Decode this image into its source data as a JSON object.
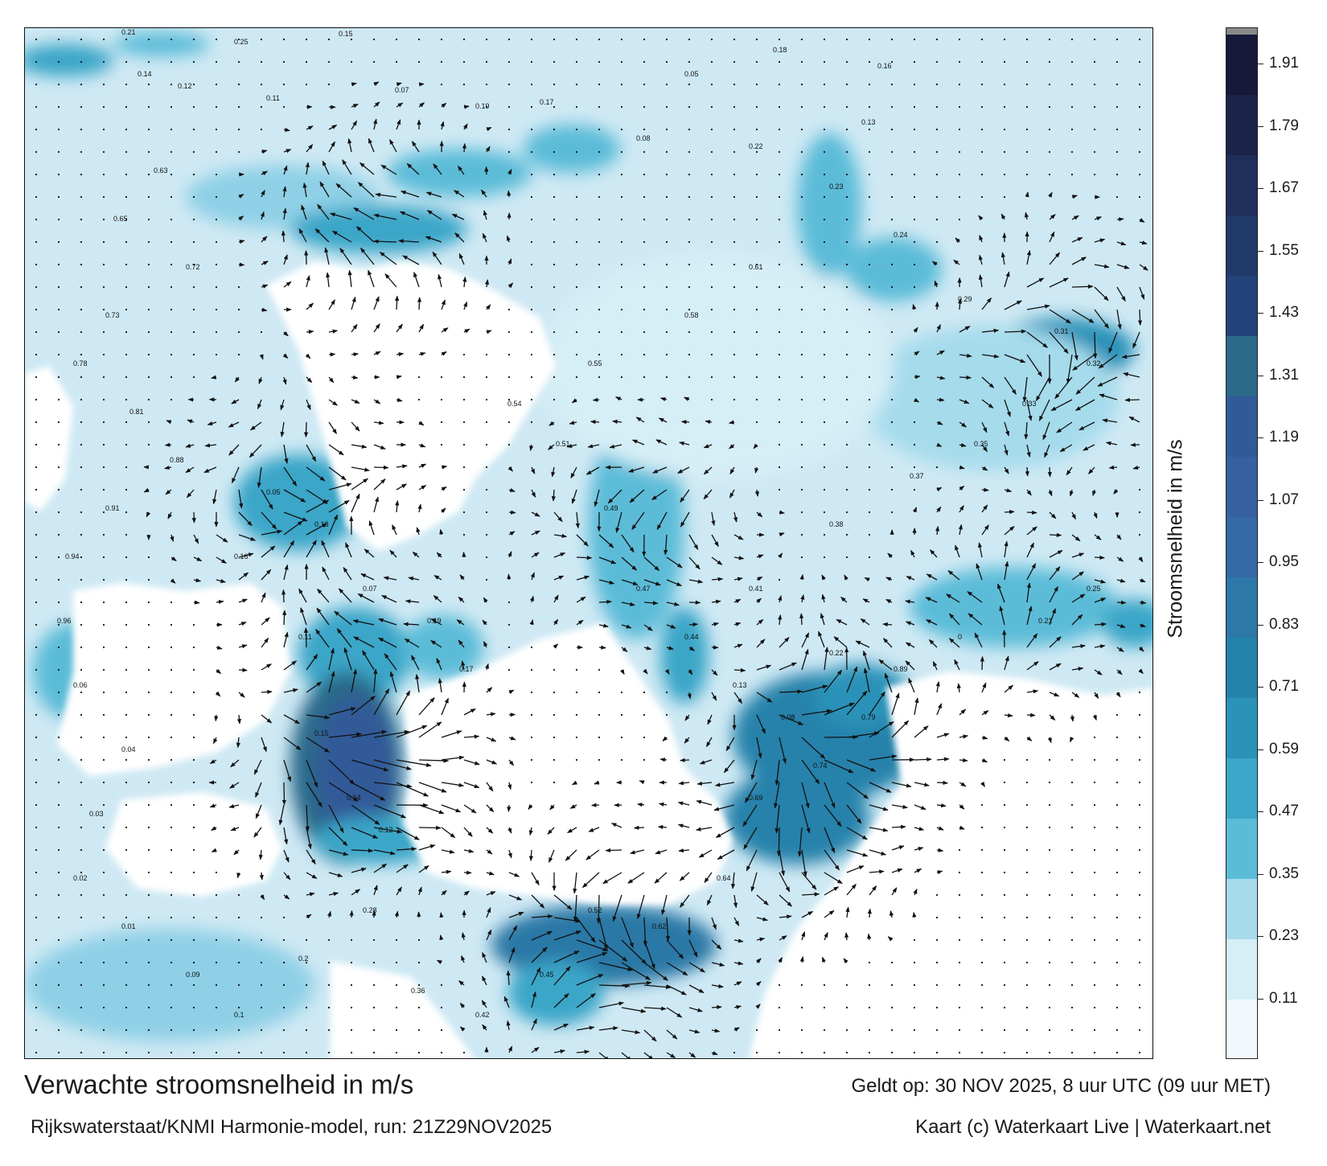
{
  "title": "Verwachte stroomsnelheid in m/s",
  "subtitle": "Rijkswaterstaat/KNMI Harmonie-model, run: 21Z29NOV2025",
  "valid_time": "Geldt op: 30 NOV 2025, 8 uur UTC (09 uur MET)",
  "credit": "Kaart (c) Waterkaart Live | Waterkaart.net",
  "legend": {
    "label": "Stroomsnelheid in m/s",
    "ticks": [
      "1.91",
      "1.79",
      "1.67",
      "1.55",
      "1.43",
      "1.31",
      "1.19",
      "1.07",
      "0.95",
      "0.83",
      "0.71",
      "0.59",
      "0.47",
      "0.35",
      "0.23",
      "0.11"
    ],
    "colors": [
      "#f2f9fc",
      "#d6eef6",
      "#a6dbec",
      "#5bbcd8",
      "#3aa6c8",
      "#2b92b8",
      "#2582ab",
      "#2c78a6",
      "#3468a6",
      "#3660a2",
      "#305a98",
      "#2b6a8a",
      "#23427a",
      "#223a6a",
      "#1f2e5a",
      "#1b2448",
      "#16193a"
    ],
    "top_color": "#8a8a8a"
  },
  "map": {
    "land_color": "#ffffff",
    "icons": [
      "current-arrow-icon",
      "calm-dot-icon"
    ],
    "sample_labels": [
      "0.21",
      "0.25",
      "0.15",
      "0.14",
      "0.12",
      "0.11",
      "0.07",
      "0.19",
      "0.17",
      "0.05",
      "0.18",
      "0.16",
      "0.13",
      "0.08",
      "0.22",
      "0.23",
      "0.24",
      "0.29",
      "0.31",
      "0.32",
      "0.33",
      "0.35",
      "0.37",
      "0.38",
      "0.41",
      "0.44",
      "0.47",
      "0.49",
      "0.51",
      "0.54",
      "0.55",
      "0.58",
      "0.61",
      "0.63",
      "0.65",
      "0.72",
      "0.73",
      "0.78",
      "0.81",
      "0.88",
      "0.91",
      "0.94",
      "0.96",
      "0.06",
      "0.04",
      "0.03",
      "0.02",
      "0.01",
      "0.09",
      "0.1",
      "0.2",
      "0.28",
      "0.36",
      "0.42",
      "0.45",
      "0.52",
      "0.62",
      "0.64",
      "0.69",
      "0.74",
      "0.79",
      "0.89",
      "0"
    ]
  }
}
